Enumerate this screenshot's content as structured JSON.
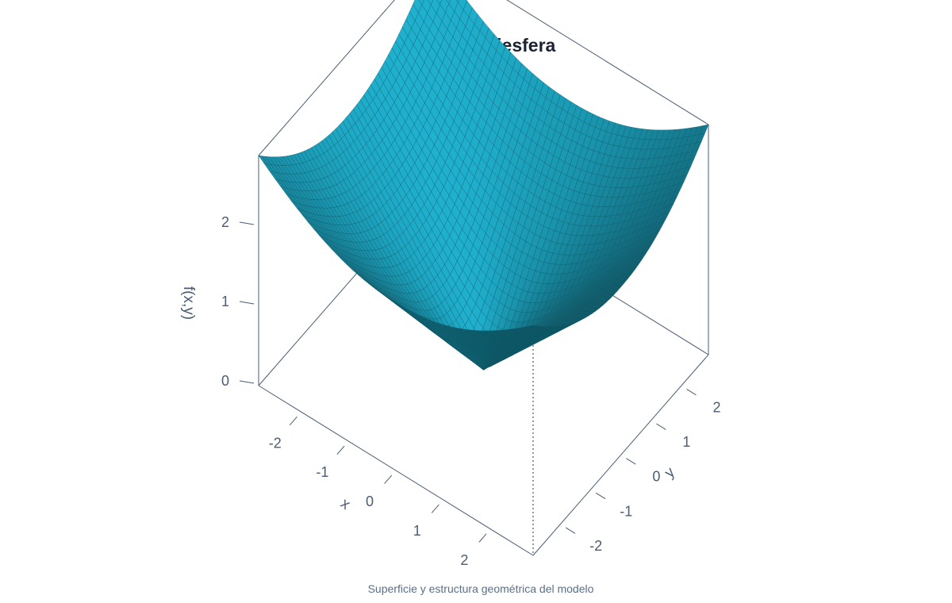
{
  "chart_data": {
    "type": "surface3d",
    "title": "Rango Semiesfera",
    "caption": "Superficie y estructura geométrica del modelo",
    "xlabel": "x",
    "ylabel": "y",
    "zlabel": "f(x,y)",
    "xlim": [
      -2.9,
      2.9
    ],
    "ylim": [
      -2.9,
      2.9
    ],
    "zlim": [
      0,
      2.9
    ],
    "x_ticks": [
      -2,
      -1,
      0,
      1,
      2
    ],
    "y_ticks": [
      -2,
      -1,
      0,
      1,
      2
    ],
    "z_ticks": [
      0,
      1,
      2
    ],
    "grid_size": 50,
    "surface_formula": "z = ((|x|^2.2 + |y|^2.2) / 2) ^ (1/2.2)",
    "surface_color": "#1b9ab4",
    "mesh_color": "#0c5a6a",
    "axis_color": "#4a5d74"
  }
}
